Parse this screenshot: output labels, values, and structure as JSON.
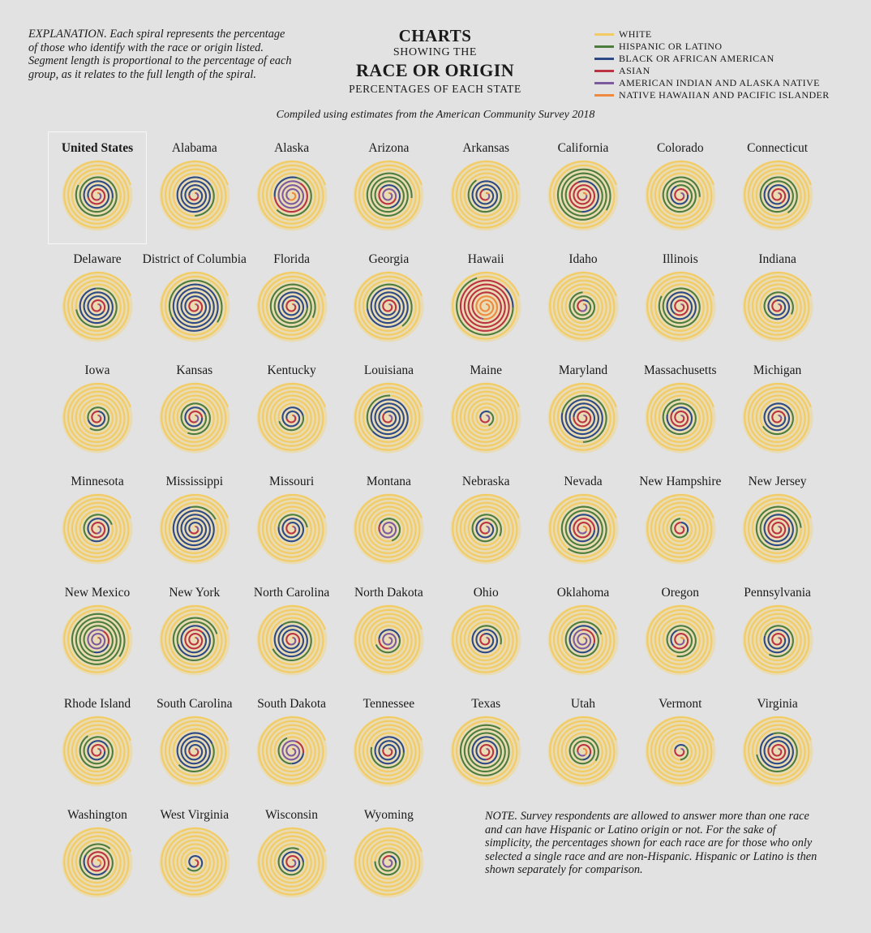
{
  "explanation": {
    "lead": "EXPLANATION.",
    "text": " Each spiral represents the percentage of those who identify with the race or origin listed. Segment length is proportional to the percentage of each group, as it relates to the full length of the spiral."
  },
  "header": {
    "line1": "CHARTS",
    "line2": "SHOWING THE",
    "line3": "RACE OR ORIGIN",
    "line4": "PERCENTAGES OF EACH STATE"
  },
  "subtitle": "Compiled using estimates from the American Community Survey 2018",
  "legend": [
    {
      "label": "WHITE",
      "color": "#f2cb63"
    },
    {
      "label": "HISPANIC OR LATINO",
      "color": "#4c7d3c"
    },
    {
      "label": "BLACK OR AFRICAN AMERICAN",
      "color": "#2e4a86"
    },
    {
      "label": "ASIAN",
      "color": "#bb3343"
    },
    {
      "label": "AMERICAN INDIAN AND ALASKA NATIVE",
      "color": "#7d5aa0"
    },
    {
      "label": "NATIVE HAWAIIAN AND PACIFIC ISLANDER",
      "color": "#ee8a3f"
    }
  ],
  "note": {
    "lead": "NOTE.",
    "text": " Survey respondents are allowed to answer more than one race and can have Hispanic or Latino origin or not. For the sake of simplicity, the percentages shown for each race are for those who only selected a single race and are non-Hispanic. Hispanic or Latino is then shown separately for comparison."
  },
  "chart_data": {
    "type": "spiral",
    "unit": "percent",
    "series_order": [
      "WHITE",
      "HISPANIC OR LATINO",
      "BLACK OR AFRICAN AMERICAN",
      "ASIAN",
      "AMERICAN INDIAN AND ALASKA NATIVE",
      "NATIVE HAWAIIAN AND PACIFIC ISLANDER"
    ],
    "states": [
      {
        "name": "United States",
        "values": [
          60.7,
          18.3,
          12.3,
          5.5,
          0.7,
          0.2
        ],
        "highlight": true
      },
      {
        "name": "Alabama",
        "values": [
          65.4,
          4.3,
          26.5,
          1.3,
          0.5,
          0.1
        ]
      },
      {
        "name": "Alaska",
        "values": [
          60.3,
          7.0,
          3.3,
          6.2,
          14.8,
          1.3
        ]
      },
      {
        "name": "Arizona",
        "values": [
          54.4,
          31.6,
          4.2,
          3.2,
          4.0,
          0.2
        ]
      },
      {
        "name": "Arkansas",
        "values": [
          72.2,
          7.6,
          15.3,
          1.6,
          0.6,
          0.3
        ]
      },
      {
        "name": "California",
        "values": [
          36.8,
          39.3,
          5.5,
          14.6,
          0.4,
          0.4
        ]
      },
      {
        "name": "Colorado",
        "values": [
          67.7,
          21.7,
          3.9,
          3.2,
          0.5,
          0.1
        ]
      },
      {
        "name": "Connecticut",
        "values": [
          66.0,
          16.5,
          10.1,
          4.6,
          0.1,
          0.1
        ]
      },
      {
        "name": "Delaware",
        "values": [
          61.9,
          9.3,
          21.8,
          4.0,
          0.3,
          0.1
        ]
      },
      {
        "name": "District of Columbia",
        "values": [
          36.8,
          11.1,
          45.0,
          4.1,
          0.2,
          0.1
        ]
      },
      {
        "name": "Florida",
        "values": [
          53.5,
          25.6,
          15.4,
          2.8,
          0.2,
          0.1
        ]
      },
      {
        "name": "Georgia",
        "values": [
          52.6,
          9.6,
          31.4,
          4.1,
          0.2,
          0.1
        ]
      },
      {
        "name": "Hawaii",
        "values": [
          21.7,
          10.7,
          1.8,
          37.6,
          0.2,
          10.1
        ]
      },
      {
        "name": "Idaho",
        "values": [
          82.2,
          12.7,
          0.6,
          1.4,
          1.2,
          0.2
        ]
      },
      {
        "name": "Illinois",
        "values": [
          61.0,
          17.4,
          14.0,
          5.6,
          0.1,
          0.1
        ]
      },
      {
        "name": "Indiana",
        "values": [
          78.9,
          7.1,
          9.5,
          2.4,
          0.2,
          0.1
        ]
      },
      {
        "name": "Iowa",
        "values": [
          85.3,
          6.2,
          3.5,
          2.5,
          0.3,
          0.1
        ]
      },
      {
        "name": "Kansas",
        "values": [
          75.9,
          12.1,
          5.6,
          3.0,
          0.8,
          0.1
        ]
      },
      {
        "name": "Kentucky",
        "values": [
          84.3,
          3.8,
          7.9,
          1.5,
          0.2,
          0.1
        ]
      },
      {
        "name": "Louisiana",
        "values": [
          58.7,
          5.2,
          32.3,
          1.7,
          0.6,
          0.1
        ]
      },
      {
        "name": "Maine",
        "values": [
          93.2,
          1.7,
          1.3,
          1.2,
          0.6,
          0.1
        ]
      },
      {
        "name": "Maryland",
        "values": [
          50.5,
          10.3,
          29.5,
          6.3,
          0.2,
          0.1
        ]
      },
      {
        "name": "Massachusetts",
        "values": [
          71.4,
          12.3,
          7.0,
          6.9,
          0.2,
          0.1
        ]
      },
      {
        "name": "Michigan",
        "values": [
          75.0,
          5.2,
          13.7,
          3.2,
          0.5,
          0.1
        ]
      },
      {
        "name": "Minnesota",
        "values": [
          79.5,
          5.5,
          6.4,
          4.9,
          1.0,
          0.1
        ]
      },
      {
        "name": "Mississippi",
        "values": [
          56.4,
          3.1,
          37.8,
          1.0,
          0.5,
          0.1
        ]
      },
      {
        "name": "Missouri",
        "values": [
          79.3,
          4.2,
          11.5,
          2.0,
          0.4,
          0.1
        ]
      },
      {
        "name": "Montana",
        "values": [
          86.0,
          3.9,
          0.4,
          0.8,
          6.2,
          0.1
        ]
      },
      {
        "name": "Nebraska",
        "values": [
          78.8,
          11.2,
          4.7,
          2.4,
          0.8,
          0.1
        ]
      },
      {
        "name": "Nevada",
        "values": [
          48.7,
          28.8,
          9.1,
          8.3,
          0.9,
          0.7
        ]
      },
      {
        "name": "New Hampshire",
        "values": [
          90.0,
          3.9,
          1.4,
          2.7,
          0.1,
          0.1
        ]
      },
      {
        "name": "New Jersey",
        "values": [
          55.1,
          20.6,
          12.7,
          9.6,
          0.1,
          0.1
        ]
      },
      {
        "name": "New Mexico",
        "values": [
          37.1,
          49.1,
          1.8,
          1.5,
          8.8,
          0.1
        ]
      },
      {
        "name": "New York",
        "values": [
          55.4,
          19.2,
          14.2,
          8.6,
          0.3,
          0.1
        ]
      },
      {
        "name": "North Carolina",
        "values": [
          63.1,
          9.6,
          21.4,
          2.9,
          1.2,
          0.1
        ]
      },
      {
        "name": "North Dakota",
        "values": [
          84.5,
          3.7,
          3.0,
          1.5,
          5.1,
          0.1
        ]
      },
      {
        "name": "Ohio",
        "values": [
          78.7,
          3.9,
          12.3,
          2.3,
          0.2,
          0.1
        ]
      },
      {
        "name": "Oklahoma",
        "values": [
          65.4,
          10.6,
          7.1,
          2.1,
          7.4,
          0.2
        ]
      },
      {
        "name": "Oregon",
        "values": [
          75.4,
          13.3,
          1.8,
          4.5,
          1.0,
          0.4
        ]
      },
      {
        "name": "Pennsylvania",
        "values": [
          76.1,
          7.6,
          10.6,
          3.5,
          0.1,
          0.1
        ]
      },
      {
        "name": "Rhode Island",
        "values": [
          71.9,
          15.9,
          5.5,
          3.4,
          0.4,
          0.1
        ]
      },
      {
        "name": "South Carolina",
        "values": [
          63.7,
          5.8,
          26.8,
          1.6,
          0.3,
          0.1
        ]
      },
      {
        "name": "South Dakota",
        "values": [
          81.5,
          3.7,
          1.7,
          1.5,
          8.4,
          0.1
        ]
      },
      {
        "name": "Tennessee",
        "values": [
          73.6,
          5.5,
          16.4,
          1.8,
          0.2,
          0.1
        ]
      },
      {
        "name": "Texas",
        "values": [
          41.5,
          39.6,
          11.8,
          4.9,
          0.2,
          0.1
        ]
      },
      {
        "name": "Utah",
        "values": [
          78.2,
          14.2,
          1.0,
          2.4,
          0.9,
          0.9
        ]
      },
      {
        "name": "Vermont",
        "values": [
          92.5,
          1.9,
          1.2,
          1.7,
          0.3,
          0.1
        ]
      },
      {
        "name": "Virginia",
        "values": [
          61.5,
          9.5,
          18.8,
          6.6,
          0.2,
          0.1
        ]
      },
      {
        "name": "Washington",
        "values": [
          68.0,
          12.9,
          3.7,
          8.7,
          1.1,
          0.7
        ]
      },
      {
        "name": "West Virginia",
        "values": [
          92.1,
          1.6,
          3.4,
          0.8,
          0.1,
          0.1
        ]
      },
      {
        "name": "Wisconsin",
        "values": [
          81.1,
          6.9,
          6.2,
          2.8,
          0.8,
          0.1
        ]
      },
      {
        "name": "Wyoming",
        "values": [
          84.1,
          10.0,
          1.0,
          0.8,
          2.1,
          0.1
        ]
      }
    ]
  }
}
